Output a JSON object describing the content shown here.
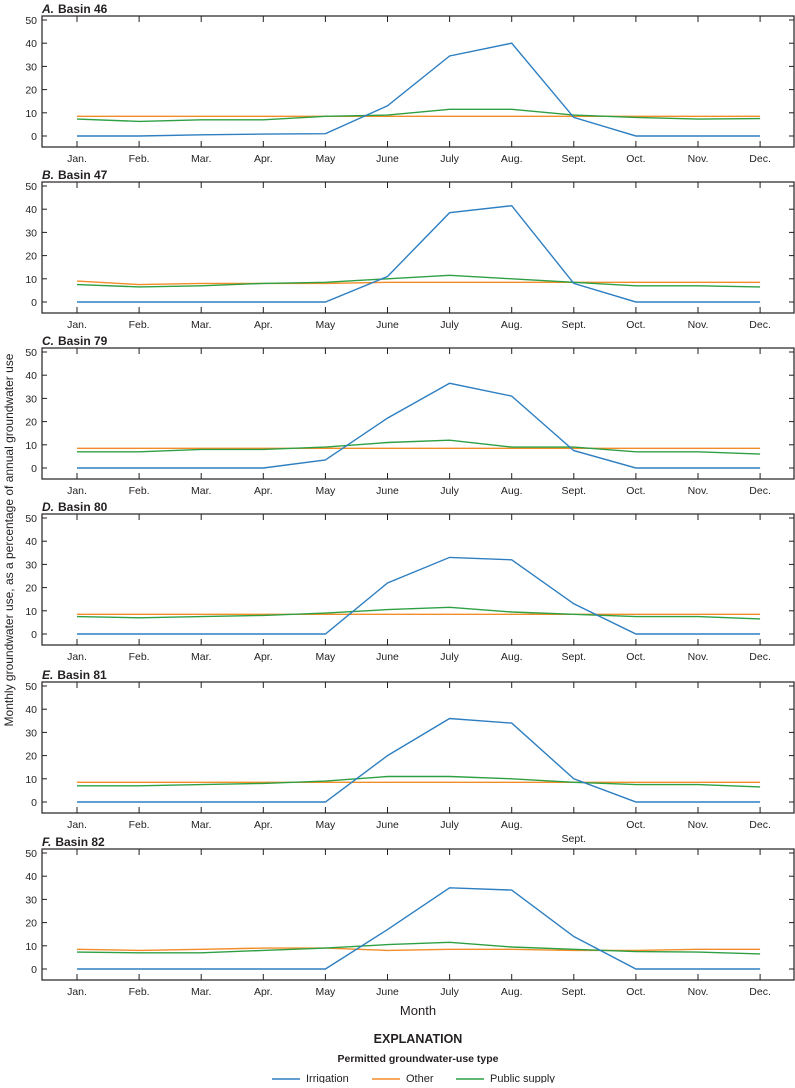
{
  "chart_data": {
    "type": "line",
    "ylabel": "Monthly groundwater use, as a percentage of annual groundwater use",
    "xlabel": "Month",
    "categories": [
      "Jan.",
      "Feb.",
      "Mar.",
      "Apr.",
      "May",
      "June",
      "July",
      "Aug.",
      "Sept.",
      "Oct.",
      "Nov.",
      "Dec."
    ],
    "yticks": [
      "50",
      "40",
      "30",
      "20",
      "10",
      "0"
    ],
    "ylim": [
      -5,
      50
    ],
    "legend": {
      "title": "EXPLANATION",
      "subtitle": "Permitted groundwater-use type",
      "placement": "bottom-center",
      "entries": [
        "Irrigation",
        "Other",
        "Public supply"
      ]
    },
    "colors": {
      "Irrigation": "#2e7fc1",
      "Other": "#f28c28",
      "Public supply": "#2ea043"
    },
    "panels": [
      {
        "letter": "A.",
        "title": "Basin 46",
        "series": [
          {
            "name": "Irrigation",
            "values": [
              0,
              0,
              0.5,
              0.8,
              1,
              13,
              34.5,
              40,
              8,
              0,
              0,
              0
            ]
          },
          {
            "name": "Other",
            "values": [
              8.5,
              8.5,
              8.5,
              8.5,
              8.5,
              8.5,
              8.5,
              8.5,
              8.5,
              8.5,
              8.5,
              8.5
            ]
          },
          {
            "name": "Public supply",
            "values": [
              7.3,
              6.3,
              7,
              7,
              8.5,
              9,
              11.5,
              11.5,
              9,
              8,
              7.3,
              7.5
            ]
          }
        ]
      },
      {
        "letter": "B.",
        "title": "Basin 47",
        "series": [
          {
            "name": "Irrigation",
            "values": [
              0,
              0,
              0,
              0,
              0,
              11,
              38.5,
              41.5,
              8,
              0,
              0,
              0
            ]
          },
          {
            "name": "Other",
            "values": [
              9,
              7.5,
              8,
              8,
              8,
              8.5,
              8.5,
              8.5,
              8.5,
              8.5,
              8.5,
              8.5
            ]
          },
          {
            "name": "Public supply",
            "values": [
              7.5,
              6.5,
              7,
              8,
              8.5,
              10,
              11.5,
              10,
              8.5,
              7,
              7,
              6.5
            ]
          }
        ]
      },
      {
        "letter": "C.",
        "title": "Basin 79",
        "series": [
          {
            "name": "Irrigation",
            "values": [
              0,
              0,
              0,
              0,
              3.5,
              21.5,
              36.5,
              31,
              7.5,
              0,
              0,
              0
            ]
          },
          {
            "name": "Other",
            "values": [
              8.5,
              8.5,
              8.5,
              8.5,
              8.5,
              8.5,
              8.5,
              8.5,
              8.5,
              8.5,
              8.5,
              8.5
            ]
          },
          {
            "name": "Public supply",
            "values": [
              7,
              7,
              8,
              8,
              9,
              11,
              12,
              9,
              9,
              7,
              7,
              6
            ]
          }
        ]
      },
      {
        "letter": "D.",
        "title": "Basin 80",
        "series": [
          {
            "name": "Irrigation",
            "values": [
              0,
              0,
              0,
              0,
              0,
              22,
              33,
              32,
              13,
              0,
              0,
              0
            ]
          },
          {
            "name": "Other",
            "values": [
              8.5,
              8.5,
              8.5,
              8.5,
              8.5,
              8.5,
              8.5,
              8.5,
              8.5,
              8.5,
              8.5,
              8.5
            ]
          },
          {
            "name": "Public supply",
            "values": [
              7.5,
              7,
              7.5,
              8,
              9,
              10.5,
              11.5,
              9.5,
              8.5,
              7.5,
              7.5,
              6.5
            ]
          }
        ]
      },
      {
        "letter": "E.",
        "title": "Basin 81",
        "series": [
          {
            "name": "Irrigation",
            "values": [
              0,
              0,
              0,
              0,
              0,
              20,
              36,
              34,
              10,
              0,
              0,
              0
            ]
          },
          {
            "name": "Other",
            "values": [
              8.5,
              8.5,
              8.5,
              8.5,
              8.5,
              8.5,
              8.5,
              8.5,
              8.5,
              8.5,
              8.5,
              8.5
            ]
          },
          {
            "name": "Public supply",
            "values": [
              7,
              7,
              7.5,
              8,
              9,
              11,
              11,
              10,
              8.5,
              7.5,
              7.5,
              6.5
            ]
          }
        ]
      },
      {
        "letter": "F.",
        "title": "Basin 82",
        "series": [
          {
            "name": "Irrigation",
            "values": [
              0,
              0,
              0,
              0,
              0,
              17,
              35,
              34,
              14,
              0,
              0,
              0
            ]
          },
          {
            "name": "Other",
            "values": [
              8.5,
              8,
              8.5,
              9,
              9,
              8,
              8.5,
              8.5,
              8,
              8,
              8.5,
              8.5
            ]
          },
          {
            "name": "Public supply",
            "values": [
              7.3,
              7,
              7,
              8,
              9,
              10.5,
              11.5,
              9.5,
              8.5,
              7.5,
              7.3,
              6.5
            ]
          }
        ]
      }
    ]
  }
}
